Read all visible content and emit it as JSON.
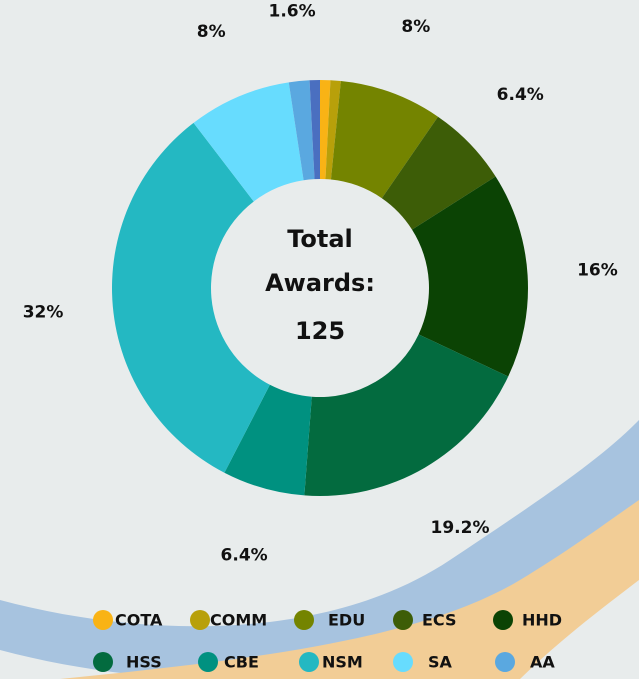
{
  "chart_data": {
    "type": "donut",
    "center_text": [
      "Total",
      "Awards:"
    ],
    "center_value": 125,
    "categories": [
      "COTA",
      "COMM",
      "EDU",
      "ECS",
      "HHD",
      "HSS",
      "CBE",
      "NSM",
      "SA",
      "AA",
      null
    ],
    "values": [
      0.8,
      0.8,
      8,
      6.4,
      16,
      19.2,
      6.4,
      32,
      8,
      1.6,
      0.8
    ],
    "value_labels": [
      null,
      null,
      "8%",
      "6.4%",
      "16%",
      "19.2%",
      "6.4%",
      "32%",
      "8%",
      "1.6%",
      null
    ],
    "colors": [
      "#f9b315",
      "#b8a00a",
      "#748400",
      "#3d5d07",
      "#0b4304",
      "#036b3f",
      "#009180",
      "#24b8c2",
      "#67dcfe",
      "#5aa8e0",
      "#4a6fc0"
    ]
  }
}
